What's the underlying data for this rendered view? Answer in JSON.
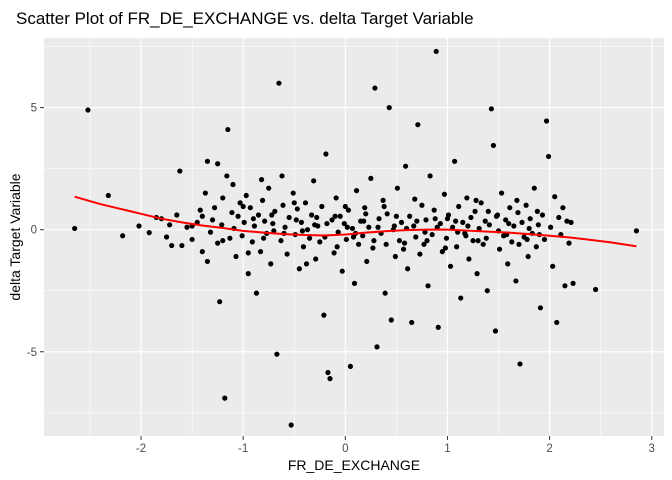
{
  "chart_data": {
    "type": "scatter",
    "title": "Scatter Plot of FR_DE_EXCHANGE vs. delta Target Variable",
    "xlabel": "FR_DE_EXCHANGE",
    "ylabel": "delta Target Variable",
    "xlim": [
      -2.95,
      3.12
    ],
    "ylim": [
      -8.45,
      7.85
    ],
    "x_ticks": [
      -2,
      -1,
      0,
      1,
      2,
      3
    ],
    "x_tick_labels": [
      "-2",
      "-1",
      "0",
      "1",
      "2",
      "3"
    ],
    "y_ticks": [
      -5,
      0,
      5
    ],
    "y_tick_labels": [
      "-5",
      "0",
      "5"
    ],
    "grid": true,
    "background_color": "#ebebeb",
    "grid_color": "#ffffff",
    "point_color": "#000000",
    "smooth_color": "#ff0000",
    "smooth_line": {
      "x": [
        -2.65,
        -2.4,
        -2.2,
        -2.0,
        -1.8,
        -1.6,
        -1.4,
        -1.2,
        -1.0,
        -0.8,
        -0.6,
        -0.4,
        -0.2,
        0.0,
        0.2,
        0.4,
        0.6,
        0.8,
        1.0,
        1.2,
        1.4,
        1.6,
        1.8,
        2.0,
        2.2,
        2.4,
        2.6,
        2.85
      ],
      "y": [
        1.35,
        1.05,
        0.85,
        0.65,
        0.45,
        0.3,
        0.17,
        0.07,
        -0.05,
        -0.12,
        -0.18,
        -0.22,
        -0.24,
        -0.2,
        -0.12,
        -0.06,
        -0.02,
        0.0,
        0.0,
        -0.04,
        -0.08,
        -0.12,
        -0.18,
        -0.25,
        -0.32,
        -0.42,
        -0.52,
        -0.68
      ]
    },
    "points": [
      [
        -2.65,
        0.05
      ],
      [
        -2.52,
        4.9
      ],
      [
        -2.32,
        1.4
      ],
      [
        -2.18,
        -0.25
      ],
      [
        -2.02,
        0.15
      ],
      [
        -1.92,
        -0.12
      ],
      [
        -1.85,
        0.5
      ],
      [
        -1.8,
        0.45
      ],
      [
        -1.75,
        -0.3
      ],
      [
        -1.72,
        0.2
      ],
      [
        -1.65,
        0.6
      ],
      [
        -1.62,
        2.4
      ],
      [
        -1.6,
        -0.65
      ],
      [
        -1.55,
        0.1
      ],
      [
        -1.5,
        -0.4
      ],
      [
        -1.45,
        0.3
      ],
      [
        -1.42,
        0.8
      ],
      [
        -1.4,
        -0.9
      ],
      [
        -1.37,
        1.5
      ],
      [
        -1.35,
        -1.3
      ],
      [
        -1.32,
        -0.1
      ],
      [
        -1.3,
        0.4
      ],
      [
        -1.28,
        0.9
      ],
      [
        -1.25,
        -0.55
      ],
      [
        -1.23,
        -2.95
      ],
      [
        -1.21,
        0.2
      ],
      [
        -1.2,
        1.3
      ],
      [
        -1.18,
        -6.9
      ],
      [
        -1.16,
        2.2
      ],
      [
        -1.15,
        4.1
      ],
      [
        -1.13,
        -0.35
      ],
      [
        -1.11,
        0.7
      ],
      [
        -1.09,
        0.05
      ],
      [
        -1.07,
        -1.1
      ],
      [
        -1.05,
        0.55
      ],
      [
        -1.03,
        1.1
      ],
      [
        -1.01,
        -0.25
      ],
      [
        -0.99,
        0.3
      ],
      [
        -0.97,
        1.4
      ],
      [
        -0.95,
        -1.8
      ],
      [
        -0.93,
        0.9
      ],
      [
        -0.91,
        -0.5
      ],
      [
        -0.89,
        0.15
      ],
      [
        -0.87,
        -2.6
      ],
      [
        -0.85,
        0.6
      ],
      [
        -0.83,
        -0.9
      ],
      [
        -0.81,
        1.2
      ],
      [
        -0.79,
        0.35
      ],
      [
        -0.77,
        -0.15
      ],
      [
        -0.75,
        1.7
      ],
      [
        -0.73,
        -1.4
      ],
      [
        -0.71,
        0.25
      ],
      [
        -0.69,
        0.75
      ],
      [
        -0.67,
        -5.1
      ],
      [
        -0.65,
        6.0
      ],
      [
        -0.63,
        -0.45
      ],
      [
        -0.61,
        1.0
      ],
      [
        -0.59,
        0.1
      ],
      [
        -0.57,
        -1.0
      ],
      [
        -0.55,
        0.5
      ],
      [
        -0.53,
        -8.0
      ],
      [
        -0.51,
        1.5
      ],
      [
        -0.49,
        -0.2
      ],
      [
        -0.47,
        0.85
      ],
      [
        -0.45,
        -1.6
      ],
      [
        -0.43,
        0.3
      ],
      [
        -0.41,
        -0.7
      ],
      [
        -0.39,
        1.1
      ],
      [
        -0.37,
        0.0
      ],
      [
        -0.35,
        -0.35
      ],
      [
        -0.33,
        0.6
      ],
      [
        -0.31,
        2.0
      ],
      [
        -0.29,
        -1.2
      ],
      [
        -0.27,
        0.15
      ],
      [
        -0.25,
        -0.5
      ],
      [
        -0.23,
        0.95
      ],
      [
        -0.21,
        -3.5
      ],
      [
        -0.19,
        3.1
      ],
      [
        -0.17,
        -5.85
      ],
      [
        -0.15,
        -6.1
      ],
      [
        -0.13,
        0.4
      ],
      [
        -0.11,
        -0.95
      ],
      [
        -0.09,
        1.3
      ],
      [
        -0.07,
        -0.1
      ],
      [
        -0.05,
        0.55
      ],
      [
        -0.03,
        -1.7
      ],
      [
        -0.01,
        0.25
      ],
      [
        0.01,
        -0.4
      ],
      [
        0.03,
        0.8
      ],
      [
        0.05,
        -5.6
      ],
      [
        0.07,
        0.05
      ],
      [
        0.09,
        -2.2
      ],
      [
        0.11,
        1.6
      ],
      [
        0.13,
        -0.6
      ],
      [
        0.15,
        0.35
      ],
      [
        0.17,
        -0.25
      ],
      [
        0.19,
        0.9
      ],
      [
        0.21,
        -1.3
      ],
      [
        0.23,
        0.1
      ],
      [
        0.25,
        2.1
      ],
      [
        0.27,
        -0.75
      ],
      [
        0.29,
        5.8
      ],
      [
        0.31,
        -4.8
      ],
      [
        0.33,
        0.45
      ],
      [
        0.35,
        -0.15
      ],
      [
        0.37,
        1.2
      ],
      [
        0.39,
        -2.6
      ],
      [
        0.41,
        0.65
      ],
      [
        0.43,
        5.0
      ],
      [
        0.45,
        -3.7
      ],
      [
        0.47,
        0.0
      ],
      [
        0.49,
        -1.1
      ],
      [
        0.51,
        1.7
      ],
      [
        0.53,
        -0.45
      ],
      [
        0.55,
        0.3
      ],
      [
        0.57,
        -0.8
      ],
      [
        0.59,
        2.6
      ],
      [
        0.61,
        -1.6
      ],
      [
        0.63,
        0.55
      ],
      [
        0.65,
        -3.8
      ],
      [
        0.67,
        0.15
      ],
      [
        0.69,
        -0.3
      ],
      [
        0.71,
        4.3
      ],
      [
        0.73,
        -1.0
      ],
      [
        0.75,
        1.0
      ],
      [
        0.77,
        -0.6
      ],
      [
        0.79,
        0.4
      ],
      [
        0.81,
        -2.3
      ],
      [
        0.83,
        2.2
      ],
      [
        0.85,
        -0.2
      ],
      [
        0.87,
        0.8
      ],
      [
        0.89,
        7.3
      ],
      [
        0.91,
        -4.0
      ],
      [
        0.93,
        0.25
      ],
      [
        0.95,
        -0.9
      ],
      [
        0.97,
        1.45
      ],
      [
        0.99,
        -0.35
      ],
      [
        1.01,
        0.6
      ],
      [
        1.03,
        -1.5
      ],
      [
        1.05,
        0.1
      ],
      [
        1.07,
        2.8
      ],
      [
        1.09,
        -0.7
      ],
      [
        1.11,
        0.95
      ],
      [
        1.13,
        -2.8
      ],
      [
        1.15,
        0.3
      ],
      [
        1.17,
        -0.15
      ],
      [
        1.19,
        1.3
      ],
      [
        1.21,
        -1.2
      ],
      [
        1.23,
        0.5
      ],
      [
        1.25,
        -0.45
      ],
      [
        1.27,
        0.75
      ],
      [
        1.29,
        -1.8
      ],
      [
        1.31,
        0.05
      ],
      [
        1.33,
        1.1
      ],
      [
        1.35,
        -0.6
      ],
      [
        1.37,
        0.35
      ],
      [
        1.39,
        -2.5
      ],
      [
        1.41,
        0.2
      ],
      [
        1.43,
        4.95
      ],
      [
        1.45,
        3.45
      ],
      [
        1.47,
        -4.15
      ],
      [
        1.49,
        0.6
      ],
      [
        1.51,
        -0.8
      ],
      [
        1.53,
        1.5
      ],
      [
        1.55,
        -0.25
      ],
      [
        1.57,
        0.4
      ],
      [
        1.59,
        -1.4
      ],
      [
        1.61,
        0.9
      ],
      [
        1.63,
        -0.5
      ],
      [
        1.65,
        0.15
      ],
      [
        1.67,
        -2.1
      ],
      [
        1.69,
        0.7
      ],
      [
        1.71,
        -5.5
      ],
      [
        1.73,
        0.3
      ],
      [
        1.75,
        -0.3
      ],
      [
        1.77,
        1.0
      ],
      [
        1.79,
        -1.1
      ],
      [
        1.81,
        0.45
      ],
      [
        1.83,
        -0.15
      ],
      [
        1.85,
        1.7
      ],
      [
        1.87,
        -0.7
      ],
      [
        1.89,
        0.2
      ],
      [
        1.91,
        -3.2
      ],
      [
        1.93,
        0.6
      ],
      [
        1.95,
        -0.4
      ],
      [
        1.97,
        4.45
      ],
      [
        1.99,
        3.0
      ],
      [
        2.01,
        0.1
      ],
      [
        2.03,
        -1.5
      ],
      [
        2.05,
        1.35
      ],
      [
        2.07,
        -3.8
      ],
      [
        2.09,
        0.5
      ],
      [
        2.11,
        -0.2
      ],
      [
        2.13,
        0.9
      ],
      [
        2.15,
        -2.3
      ],
      [
        2.17,
        0.35
      ],
      [
        2.19,
        -0.55
      ],
      [
        2.21,
        0.3
      ],
      [
        2.23,
        -2.2
      ],
      [
        2.45,
        -2.45
      ],
      [
        2.85,
        -0.05
      ],
      [
        -1.7,
        -0.65
      ],
      [
        -1.5,
        0.15
      ],
      [
        -1.35,
        2.8
      ],
      [
        -1.25,
        2.7
      ],
      [
        -1.1,
        1.85
      ],
      [
        -0.95,
        -0.95
      ],
      [
        -0.82,
        2.05
      ],
      [
        -0.7,
        -0.05
      ],
      [
        -0.62,
        2.2
      ],
      [
        -0.5,
        1.1
      ],
      [
        -0.38,
        -1.4
      ],
      [
        -0.28,
        0.5
      ],
      [
        -0.18,
        0.25
      ],
      [
        -0.08,
        -0.7
      ],
      [
        0.0,
        0.95
      ],
      [
        0.08,
        -0.3
      ],
      [
        0.18,
        0.35
      ],
      [
        0.28,
        -0.45
      ],
      [
        0.38,
        0.95
      ],
      [
        0.48,
        0.15
      ],
      [
        0.58,
        -0.55
      ],
      [
        0.68,
        1.25
      ],
      [
        0.78,
        -0.1
      ],
      [
        0.88,
        0.45
      ],
      [
        0.98,
        -0.75
      ],
      [
        1.08,
        0.35
      ],
      [
        1.18,
        -0.25
      ],
      [
        1.28,
        1.2
      ],
      [
        1.38,
        -0.35
      ],
      [
        1.48,
        0.55
      ],
      [
        1.58,
        -0.2
      ],
      [
        1.68,
        1.2
      ],
      [
        1.78,
        -0.4
      ],
      [
        1.88,
        0.75
      ],
      [
        -1.4,
        0.55
      ],
      [
        -1.2,
        -0.45
      ],
      [
        -1.0,
        0.95
      ],
      [
        -0.9,
        0.45
      ],
      [
        -0.8,
        -0.35
      ],
      [
        -0.72,
        0.6
      ],
      [
        -0.6,
        -0.15
      ],
      [
        -0.48,
        0.4
      ],
      [
        -0.42,
        -0.05
      ],
      [
        -0.3,
        0.2
      ],
      [
        -0.2,
        -0.3
      ],
      [
        -0.1,
        0.55
      ],
      [
        0.02,
        0.1
      ],
      [
        0.1,
        -0.15
      ],
      [
        0.2,
        0.65
      ],
      [
        0.32,
        0.1
      ],
      [
        0.4,
        -0.6
      ],
      [
        0.5,
        0.55
      ],
      [
        0.6,
        0.05
      ],
      [
        0.7,
        0.35
      ],
      [
        0.8,
        -0.45
      ],
      [
        0.9,
        0.1
      ],
      [
        1.0,
        0.45
      ],
      [
        1.1,
        -0.1
      ],
      [
        1.2,
        0.15
      ],
      [
        1.3,
        -0.45
      ],
      [
        1.4,
        0.75
      ],
      [
        1.5,
        -0.05
      ],
      [
        1.6,
        0.25
      ],
      [
        1.7,
        -0.6
      ],
      [
        1.8,
        0.05
      ],
      [
        1.9,
        -0.2
      ]
    ]
  }
}
